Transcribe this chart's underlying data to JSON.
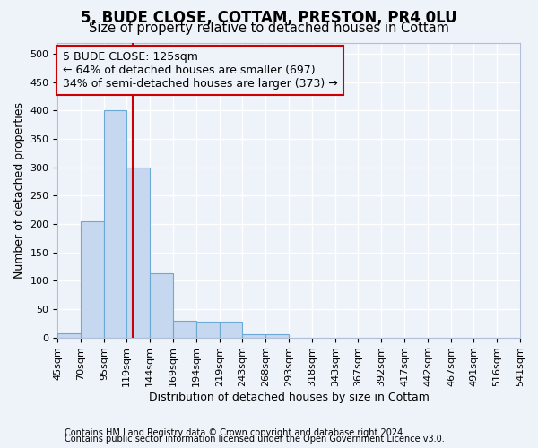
{
  "title_line1": "5, BUDE CLOSE, COTTAM, PRESTON, PR4 0LU",
  "title_line2": "Size of property relative to detached houses in Cottam",
  "xlabel": "Distribution of detached houses by size in Cottam",
  "ylabel": "Number of detached properties",
  "footer_line1": "Contains HM Land Registry data © Crown copyright and database right 2024.",
  "footer_line2": "Contains public sector information licensed under the Open Government Licence v3.0.",
  "bar_edges": [
    45,
    70,
    95,
    119,
    144,
    169,
    194,
    219,
    243,
    268,
    293,
    318,
    343,
    367,
    392,
    417,
    442,
    467,
    491,
    516,
    541
  ],
  "bar_heights": [
    8,
    205,
    400,
    300,
    113,
    30,
    28,
    28,
    6,
    5,
    0,
    0,
    0,
    0,
    0,
    0,
    0,
    0,
    0,
    0
  ],
  "bar_color": "#c5d8ef",
  "bar_edge_color": "#6aaad4",
  "property_line_x": 125,
  "property_line_color": "#cc0000",
  "annotation_line1": "5 BUDE CLOSE: 125sqm",
  "annotation_line2": "← 64% of detached houses are smaller (697)",
  "annotation_line3": "34% of semi-detached houses are larger (373) →",
  "annotation_box_color": "#cc0000",
  "ylim": [
    0,
    520
  ],
  "yticks": [
    0,
    50,
    100,
    150,
    200,
    250,
    300,
    350,
    400,
    450,
    500
  ],
  "background_color": "#eef2f9",
  "grid_color": "#ffffff",
  "title_fontsize": 12,
  "subtitle_fontsize": 10.5,
  "tick_label_fontsize": 8,
  "ylabel_fontsize": 9,
  "xlabel_fontsize": 9,
  "annotation_fontsize": 9,
  "footer_fontsize": 7
}
